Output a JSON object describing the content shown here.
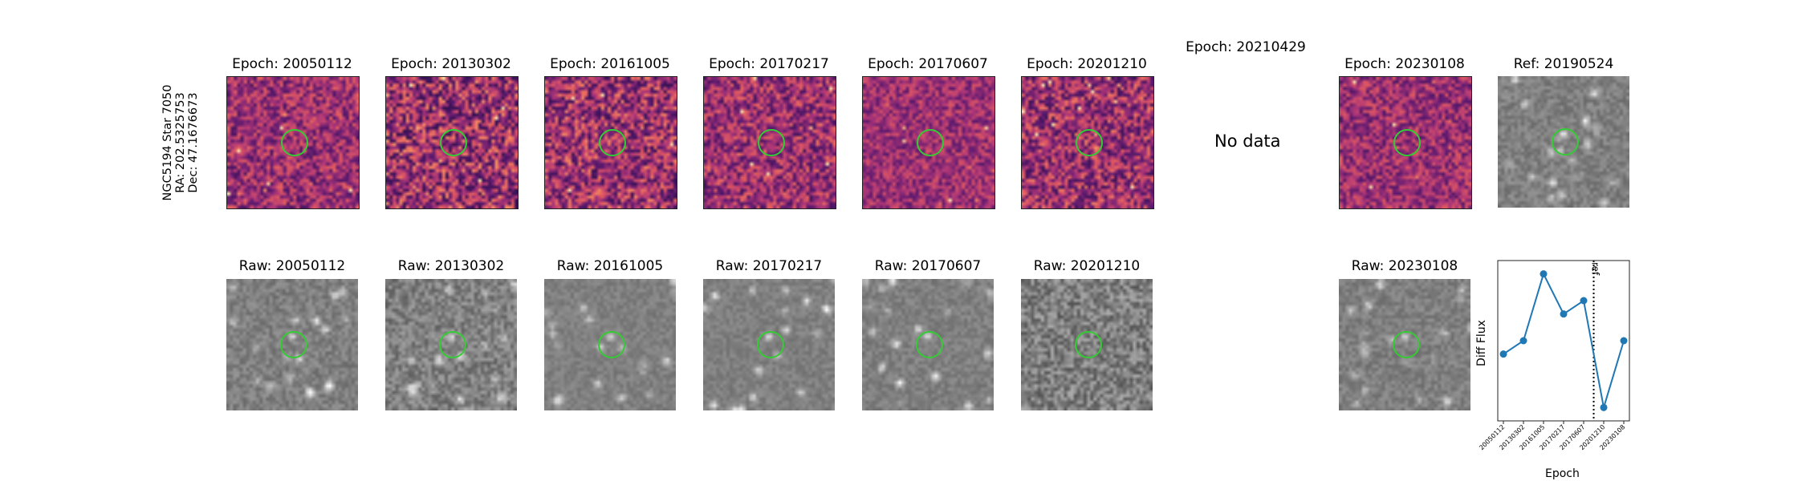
{
  "star": {
    "name": "NGC5194 Star 7050",
    "ra": "RA: 202.5325753",
    "dec": "Dec: 47.1676673"
  },
  "diff_titles": [
    "Epoch: 20050112",
    "Epoch: 20130302",
    "Epoch: 20161005",
    "Epoch: 20170217",
    "Epoch: 20170607",
    "Epoch: 20201210",
    "Epoch: 20210429",
    "Epoch: 20230108"
  ],
  "ref_title": "Ref: 20190524",
  "no_data_text": "No data",
  "raw_titles": [
    "Raw: 20050112",
    "Raw: 20130302",
    "Raw: 20161005",
    "Raw: 20170217",
    "Raw: 20170607",
    "Raw: 20201210",
    "Raw: 20230108"
  ],
  "colors": {
    "circle": "#33cc33",
    "series": "#1f77b4",
    "diff_colormap": "magma",
    "raw_colormap": "gray"
  },
  "chart_data": {
    "type": "line",
    "xlabel": "Epoch",
    "ylabel": "Diff Flux",
    "categories": [
      "20050112",
      "20130302",
      "20161005",
      "20170217",
      "20170607",
      "20201210",
      "20230108"
    ],
    "values": [
      -0.05,
      0.0,
      0.25,
      0.1,
      0.15,
      -0.25,
      0.0
    ],
    "ylim": [
      -0.3,
      0.3
    ],
    "reference_line": {
      "after_category_index": 4,
      "label": "ref",
      "style": "dotted"
    }
  }
}
